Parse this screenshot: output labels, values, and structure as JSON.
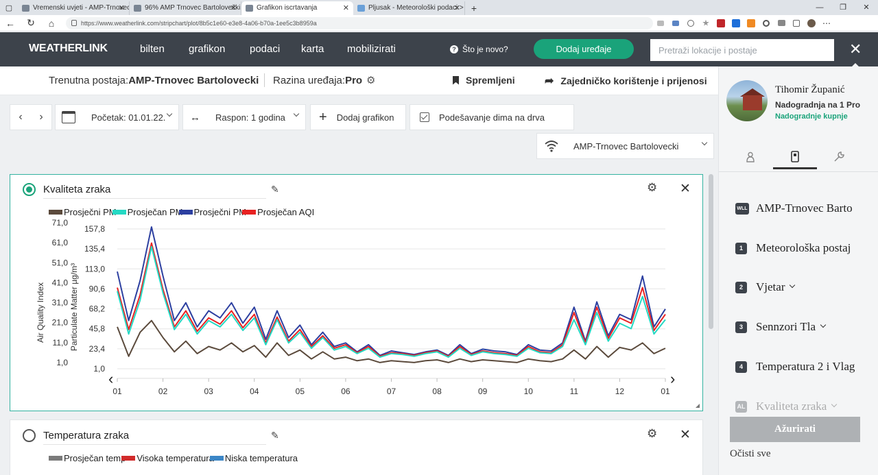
{
  "browser": {
    "tabs": [
      {
        "title": "Vremenski uvjeti - AMP-Trnovec",
        "active": false
      },
      {
        "title": "96%  AMP Trnovec Bartolovečki",
        "active": false
      },
      {
        "title": "Grafikon iscrtavanja",
        "active": true
      },
      {
        "title": "Pljusak - Meteorološki podaci >",
        "active": false
      }
    ],
    "url": "https://www.weatherlink.com/stripchart/plot/8b5c1e60-e3e8-4a06-b70a-1ee5c3b8959a"
  },
  "header": {
    "logo": "WEATHERLINK",
    "nav": [
      "bilten",
      "grafikon",
      "podaci",
      "karta",
      "mobilizirati"
    ],
    "whats_new": "Što je novo?",
    "add_devices": "Dodaj uređaje",
    "search_placeholder": "Pretraži lokacije i postaje"
  },
  "station": {
    "label": "Trenutna postaja:",
    "name": "AMP-Trnovec Bartolovecki",
    "level_label": "Razina uređaja:",
    "level": "Pro",
    "saved": "Spremljeni",
    "share": "Zajedničko korištenje i prijenosi"
  },
  "toolbar": {
    "start": "Početak: 01.01.22.",
    "range": "Raspon: 1 godina",
    "add_chart": "Dodaj grafikon",
    "woodsmoke": "Podešavanje dima na drva",
    "station_select": "AMP-Trnovec Bartolovecki"
  },
  "chart1": {
    "title": "Kvaliteta zraka",
    "legend": [
      {
        "label": "Prosječni PM",
        "color": "#5b4a3c"
      },
      {
        "label": "Prosječan PM",
        "color": "#25d9c4"
      },
      {
        "label": "Prosječni PM",
        "color": "#2c3fa0"
      },
      {
        "label": "Prosječan AQI",
        "color": "#e82222"
      }
    ],
    "y_left_label": "Air Quality Index",
    "y_right_label": "Particulate Matter µg/m³",
    "aqi_ticks": [
      "71,0",
      "61,0",
      "51,0",
      "41,0",
      "31,0",
      "21,0",
      "11,0",
      "1,0"
    ],
    "pm_ticks": [
      "157,8",
      "135,4",
      "113,0",
      "90,6",
      "68,2",
      "45,8",
      "23,4",
      "1,0"
    ],
    "x_ticks": [
      "01",
      "02",
      "03",
      "04",
      "05",
      "06",
      "07",
      "08",
      "09",
      "10",
      "11",
      "12",
      "01"
    ]
  },
  "chart2": {
    "title": "Temperatura zraka",
    "legend": [
      {
        "label": "Prosječan temp",
        "color": "#7b7b7b"
      },
      {
        "label": "Visoka temperatura",
        "color": "#d12b2b"
      },
      {
        "label": "Niska temperatura",
        "color": "#3b86c6"
      }
    ]
  },
  "user": {
    "name": "Tihomir Županić",
    "plan": "Nadogradnja na 1 Pro",
    "upgrades": "Nadogradnje kupnje"
  },
  "sensors": [
    {
      "badge": "WLL",
      "label": "AMP-Trnovec Barto",
      "caret": false,
      "faded": false
    },
    {
      "badge": "1",
      "label": "Meteorološka postaj",
      "caret": false,
      "faded": false
    },
    {
      "badge": "2",
      "label": "Vjetar",
      "caret": true,
      "faded": false
    },
    {
      "badge": "3",
      "label": "Sennzori Tla",
      "caret": true,
      "faded": false
    },
    {
      "badge": "4",
      "label": "Temperatura 2 i Vlag",
      "caret": false,
      "faded": false
    },
    {
      "badge": "AL",
      "label": "Kvaliteta zraka",
      "caret": true,
      "faded": true
    }
  ],
  "panel": {
    "update": "Ažurirati",
    "clear_all": "Očisti sve"
  },
  "chart_data": {
    "type": "line",
    "y_left_label": "Air Quality Index",
    "y_right_label": "Particulate Matter µg/m³",
    "aqi_ylim": [
      1.0,
      71.0
    ],
    "pm_ylim": [
      1.0,
      157.8
    ],
    "x_ticks": [
      "01",
      "02",
      "03",
      "04",
      "05",
      "06",
      "07",
      "08",
      "09",
      "10",
      "11",
      "12",
      "01"
    ],
    "x": [
      0.0,
      0.25,
      0.5,
      0.75,
      1.0,
      1.25,
      1.5,
      1.75,
      2.0,
      2.25,
      2.5,
      2.75,
      3.0,
      3.25,
      3.5,
      3.75,
      4.0,
      4.25,
      4.5,
      4.75,
      5.0,
      5.25,
      5.5,
      5.75,
      6.0,
      6.25,
      6.5,
      6.75,
      7.0,
      7.25,
      7.5,
      7.75,
      8.0,
      8.25,
      8.5,
      8.75,
      9.0,
      9.25,
      9.5,
      9.75,
      10.0,
      10.25,
      10.5,
      10.75,
      11.0,
      11.25,
      11.5,
      11.75,
      12.0
    ],
    "series": [
      {
        "name": "Prosječni PM",
        "color": "#5b4a3c",
        "values": [
          48,
          15,
          42,
          55,
          36,
          20,
          32,
          18,
          26,
          22,
          30,
          20,
          27,
          14,
          30,
          16,
          22,
          12,
          20,
          12,
          14,
          10,
          12,
          8,
          10,
          9,
          8,
          10,
          11,
          8,
          12,
          9,
          11,
          10,
          9,
          8,
          12,
          10,
          9,
          12,
          22,
          12,
          26,
          14,
          25,
          22,
          30,
          18,
          24
        ]
      },
      {
        "name": "Prosječan PM",
        "color": "#25d9c4",
        "values": [
          88,
          40,
          78,
          138,
          86,
          45,
          62,
          40,
          55,
          48,
          62,
          44,
          58,
          28,
          56,
          30,
          42,
          24,
          36,
          22,
          26,
          18,
          24,
          14,
          18,
          17,
          15,
          18,
          20,
          14,
          24,
          16,
          20,
          18,
          17,
          15,
          24,
          19,
          18,
          26,
          56,
          28,
          64,
          32,
          52,
          46,
          82,
          40,
          56
        ]
      },
      {
        "name": "Prosječni PM",
        "color": "#2c3fa0",
        "values": [
          110,
          55,
          100,
          160,
          105,
          55,
          75,
          48,
          66,
          58,
          75,
          52,
          70,
          34,
          66,
          36,
          50,
          28,
          42,
          26,
          30,
          20,
          28,
          16,
          21,
          19,
          17,
          20,
          22,
          16,
          28,
          18,
          23,
          21,
          20,
          17,
          28,
          22,
          21,
          30,
          70,
          32,
          76,
          38,
          62,
          56,
          105,
          48,
          68
        ]
      },
      {
        "name": "Prosječan AQI",
        "color": "#e82222",
        "values": [
          92,
          45,
          84,
          142,
          90,
          48,
          66,
          43,
          58,
          51,
          66,
          47,
          62,
          30,
          59,
          32,
          45,
          26,
          38,
          24,
          28,
          19,
          26,
          15,
          19,
          18,
          16,
          19,
          21,
          15,
          26,
          17,
          21,
          19,
          18,
          16,
          26,
          20,
          19,
          28,
          64,
          30,
          70,
          35,
          58,
          52,
          92,
          44,
          62
        ]
      }
    ]
  }
}
